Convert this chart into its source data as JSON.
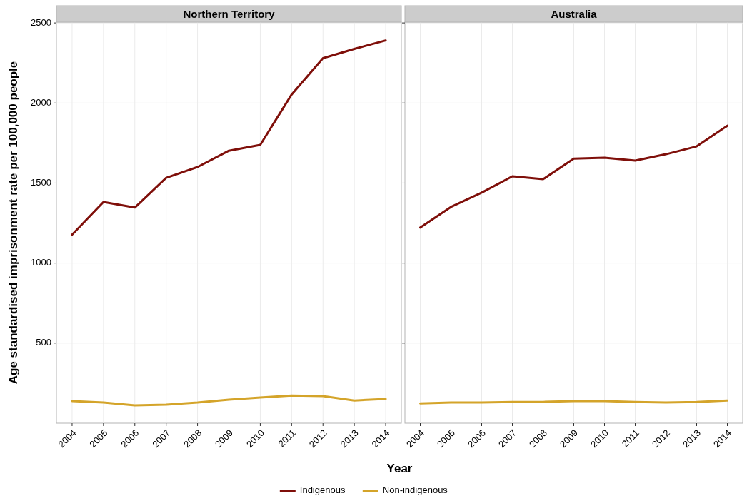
{
  "chart_data": [
    {
      "type": "line",
      "title": "Northern Territory",
      "xlabel": "Year",
      "ylabel": "Age standardised imprisonment rate per 100,000 people",
      "x": [
        2004,
        2005,
        2006,
        2007,
        2008,
        2009,
        2010,
        2011,
        2012,
        2013,
        2014
      ],
      "xlim": [
        2003.5,
        2014.5
      ],
      "xticks": [
        2004,
        2005,
        2006,
        2007,
        2008,
        2009,
        2010,
        2011,
        2012,
        2013,
        2014
      ],
      "ylim": [
        0,
        2505
      ],
      "yticks": [
        500,
        1000,
        1500,
        2000,
        2500
      ],
      "grid": true,
      "legend": "bottom",
      "series": [
        {
          "name": "Indigenous",
          "color": "#7f0f0a",
          "values": [
            1178,
            1382,
            1347,
            1533,
            1600,
            1702,
            1738,
            2053,
            2280,
            2338,
            2391
          ]
        },
        {
          "name": "Non-indigenous",
          "color": "#d4a42a",
          "values": [
            138,
            129,
            111,
            116,
            129,
            147,
            160,
            173,
            169,
            142,
            151
          ]
        }
      ]
    },
    {
      "type": "line",
      "title": "Australia",
      "x": [
        2004,
        2005,
        2006,
        2007,
        2008,
        2009,
        2010,
        2011,
        2012,
        2013,
        2014
      ],
      "xlim": [
        2003.5,
        2014.5
      ],
      "xticks": [
        2004,
        2005,
        2006,
        2007,
        2008,
        2009,
        2010,
        2011,
        2012,
        2013,
        2014
      ],
      "ylim": [
        0,
        2505
      ],
      "yticks": [
        500,
        1000,
        1500,
        2000,
        2500
      ],
      "grid": true,
      "tick_labels": "x",
      "series": [
        {
          "color": "#7f0f0a",
          "values": [
            1222,
            1351,
            1440,
            1542,
            1524,
            1653,
            1658,
            1640,
            1680,
            1729,
            1858
          ]
        },
        {
          "color": "#d4a42a",
          "values": [
            124,
            129,
            129,
            133,
            133,
            138,
            138,
            133,
            129,
            133,
            142
          ]
        }
      ]
    }
  ]
}
